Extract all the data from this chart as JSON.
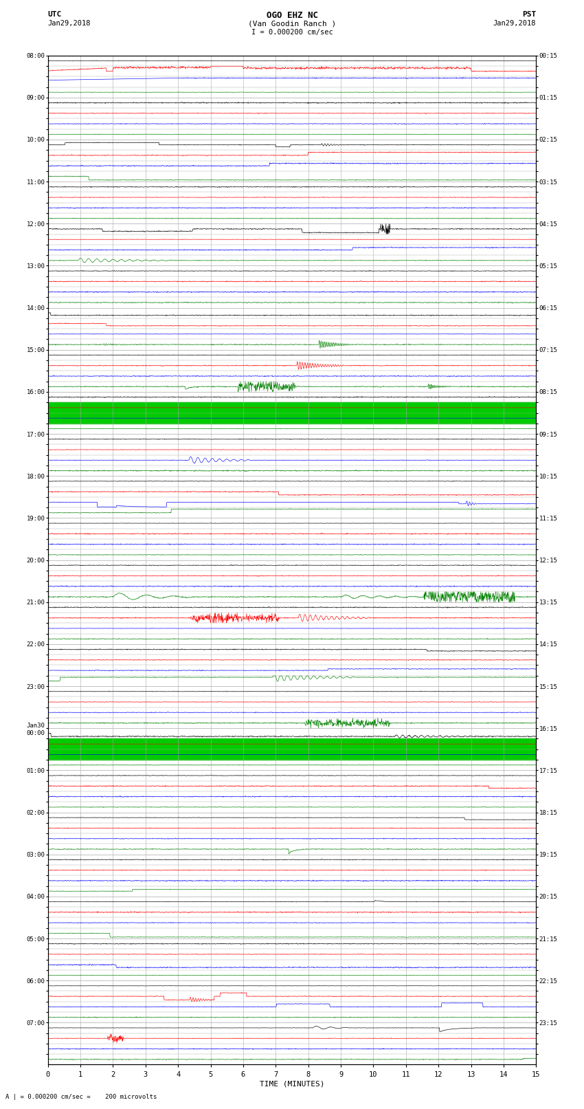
{
  "title_line1": "OGO EHZ NC",
  "title_line2": "(Van Goodin Ranch )",
  "title_line3": "I = 0.000200 cm/sec",
  "label_utc": "UTC",
  "label_pst": "PST",
  "date_left": "Jan29,2018",
  "date_right": "Jan29,2018",
  "xlabel": "TIME (MINUTES)",
  "footnote": "A | = 0.000200 cm/sec =    200 microvolts",
  "utc_times_labeled": {
    "0": "08:00",
    "4": "09:00",
    "8": "10:00",
    "12": "11:00",
    "16": "12:00",
    "20": "13:00",
    "24": "14:00",
    "28": "15:00",
    "32": "16:00",
    "36": "17:00",
    "40": "18:00",
    "44": "19:00",
    "48": "20:00",
    "52": "21:00",
    "56": "22:00",
    "60": "23:00",
    "64": "Jan30\n00:00",
    "68": "01:00",
    "72": "02:00",
    "76": "03:00",
    "80": "04:00",
    "84": "05:00",
    "88": "06:00",
    "92": "07:00"
  },
  "pst_times_labeled": {
    "0": "00:15",
    "4": "01:15",
    "8": "02:15",
    "12": "03:15",
    "16": "04:15",
    "20": "05:15",
    "24": "06:15",
    "28": "07:15",
    "32": "08:15",
    "36": "09:15",
    "40": "10:15",
    "44": "11:15",
    "48": "12:15",
    "52": "13:15",
    "56": "14:15",
    "60": "15:15",
    "64": "16:15",
    "68": "17:15",
    "72": "18:15",
    "76": "19:15",
    "80": "20:15",
    "84": "21:15",
    "88": "22:15",
    "92": "23:15"
  },
  "n_rows": 96,
  "x_min": 0,
  "x_max": 15,
  "x_ticks": [
    0,
    1,
    2,
    3,
    4,
    5,
    6,
    7,
    8,
    9,
    10,
    11,
    12,
    13,
    14,
    15
  ],
  "bg_color": "#ffffff",
  "grid_color": "#aaaaaa",
  "trace_colors_cycle": [
    "black",
    "red",
    "blue",
    "green"
  ],
  "solid_green_rows": [
    33,
    34,
    65,
    66
  ],
  "solid_blue_rows": [],
  "seed": 12345
}
